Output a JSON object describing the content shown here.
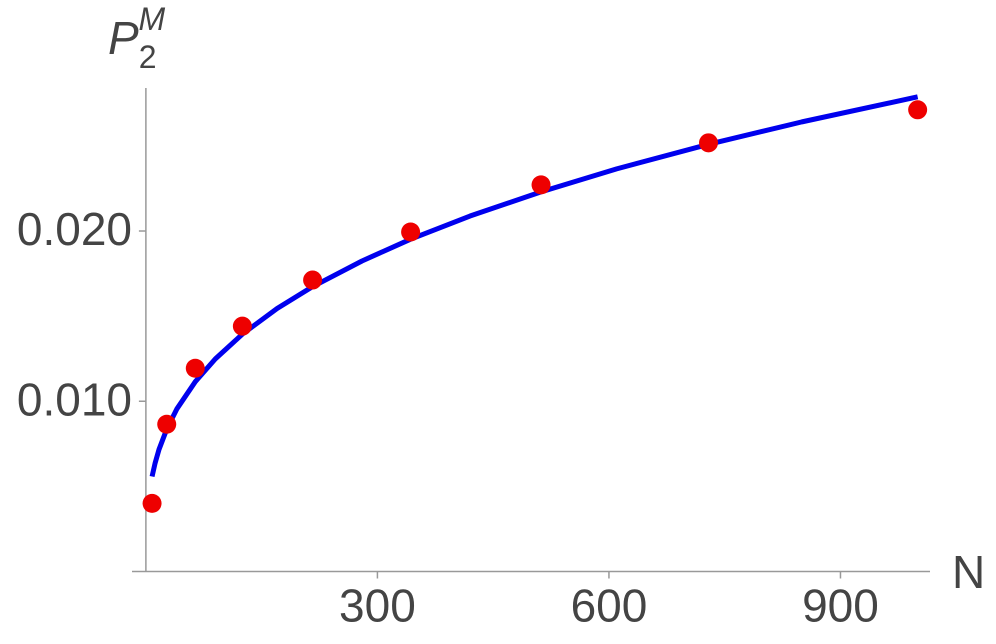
{
  "chart_data": {
    "type": "scatter",
    "x_label": "N",
    "y_label": {
      "base": "P",
      "sub": "2",
      "sup": "M"
    },
    "xlim": [
      -18,
      1016
    ],
    "ylim": [
      0,
      0.0284
    ],
    "xticks": [
      300,
      600,
      900
    ],
    "yticks": [
      {
        "value": 0.01,
        "label": "0.010"
      },
      {
        "value": 0.02,
        "label": "0.020"
      }
    ],
    "series": [
      {
        "type": "line",
        "color": "#0000ee",
        "x": [
          8,
          12,
          17,
          27,
          40,
          64,
          90,
          125,
          170,
          216,
          280,
          343,
          420,
          512,
          610,
          729,
          850,
          1000
        ],
        "values": [
          0.00558,
          0.00638,
          0.00717,
          0.00836,
          0.00954,
          0.01115,
          0.01249,
          0.01394,
          0.01545,
          0.01673,
          0.01824,
          0.01952,
          0.02088,
          0.0223,
          0.02365,
          0.02509,
          0.02641,
          0.02788
        ]
      },
      {
        "type": "scatter",
        "color": "#ee0000",
        "x": [
          8,
          27,
          64,
          125,
          216,
          343,
          512,
          729,
          1000
        ],
        "values": [
          0.004,
          0.00865,
          0.01194,
          0.01441,
          0.01712,
          0.01994,
          0.02271,
          0.02518,
          0.02712
        ]
      }
    ]
  }
}
